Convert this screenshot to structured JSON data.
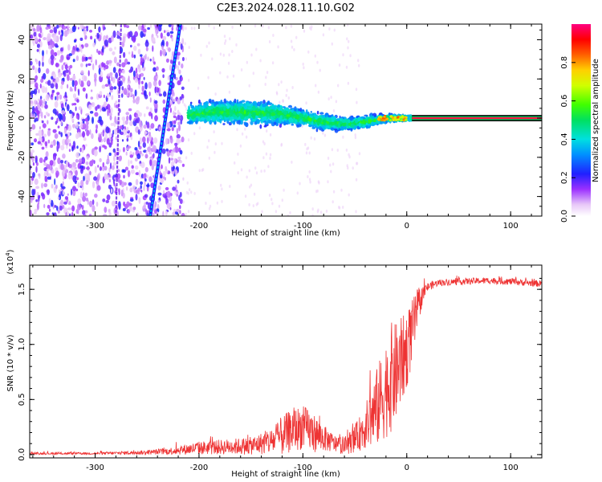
{
  "title": "C2E3.2024.028.11.10.G02",
  "chart_data": [
    {
      "type": "heatmap",
      "xlabel": "Height of straight line (km)",
      "ylabel": "Frequency (Hz)",
      "xlim": [
        -363,
        130
      ],
      "ylim": [
        -50,
        48
      ],
      "xticks": [
        "-300",
        "-200",
        "-100",
        "0",
        "100"
      ],
      "xtick_values": [
        -300,
        -200,
        -100,
        0,
        100
      ],
      "yticks": [
        "-40",
        "-20",
        "0",
        "20",
        "40"
      ],
      "ytick_values": [
        -40,
        -20,
        0,
        20,
        40
      ],
      "colorbar": {
        "label": "Normalized spectral amplitude",
        "range": [
          0,
          1
        ],
        "ticks": [
          "0.0",
          "0.2",
          "0.4",
          "0.6",
          "0.8"
        ],
        "tick_values": [
          0.0,
          0.2,
          0.4,
          0.6,
          0.8
        ]
      },
      "features": {
        "carrier_line": {
          "x_range": [
            5,
            130
          ],
          "frequency": 0
        },
        "doppler_track": {
          "points": [
            [
              -247,
              -50
            ],
            [
              -218,
              48
            ]
          ]
        },
        "noise_region_x": [
          -363,
          -215
        ],
        "signal_band": {
          "x": [
            -210,
            -180,
            -150,
            -120,
            -100,
            -80,
            -60,
            -40,
            -20,
            5
          ],
          "center": [
            2,
            3,
            3,
            2,
            0,
            -2,
            -3,
            -2,
            0,
            0
          ],
          "half_width": [
            5,
            6,
            6,
            5,
            4,
            4,
            3,
            3,
            2,
            1
          ]
        }
      }
    },
    {
      "type": "line",
      "xlabel": "Height of straight line (km)",
      "ylabel": "SNR (10 * v/v)",
      "multiplier": "(x10",
      "multiplier_exp": "4",
      "xlim": [
        -363,
        130
      ],
      "ylim": [
        -0.03,
        1.72
      ],
      "xticks": [
        "-300",
        "-200",
        "-100",
        "0",
        "100"
      ],
      "xtick_values": [
        -300,
        -200,
        -100,
        0,
        100
      ],
      "yticks": [
        "0.0",
        "0.5",
        "1.0",
        "1.5"
      ],
      "ytick_values": [
        0.0,
        0.5,
        1.0,
        1.5
      ],
      "color": "#ee3333",
      "series_envelope": {
        "x": [
          -363,
          -300,
          -250,
          -230,
          -200,
          -150,
          -130,
          -120,
          -110,
          -100,
          -90,
          -80,
          -70,
          -60,
          -50,
          -40,
          -30,
          -20,
          -15,
          -10,
          -5,
          0,
          5,
          10,
          15,
          20,
          30,
          50,
          80,
          100,
          130
        ],
        "mean": [
          0.01,
          0.01,
          0.02,
          0.03,
          0.06,
          0.08,
          0.12,
          0.17,
          0.22,
          0.25,
          0.2,
          0.15,
          0.1,
          0.08,
          0.14,
          0.25,
          0.4,
          0.6,
          0.7,
          0.75,
          0.85,
          0.95,
          1.1,
          1.3,
          1.45,
          1.52,
          1.56,
          1.57,
          1.58,
          1.57,
          1.55
        ],
        "spread": [
          0.01,
          0.01,
          0.02,
          0.03,
          0.06,
          0.08,
          0.12,
          0.18,
          0.2,
          0.2,
          0.18,
          0.12,
          0.08,
          0.08,
          0.12,
          0.2,
          0.35,
          0.45,
          0.5,
          0.45,
          0.4,
          0.35,
          0.3,
          0.2,
          0.08,
          0.04,
          0.03,
          0.03,
          0.03,
          0.03,
          0.03
        ]
      }
    }
  ]
}
